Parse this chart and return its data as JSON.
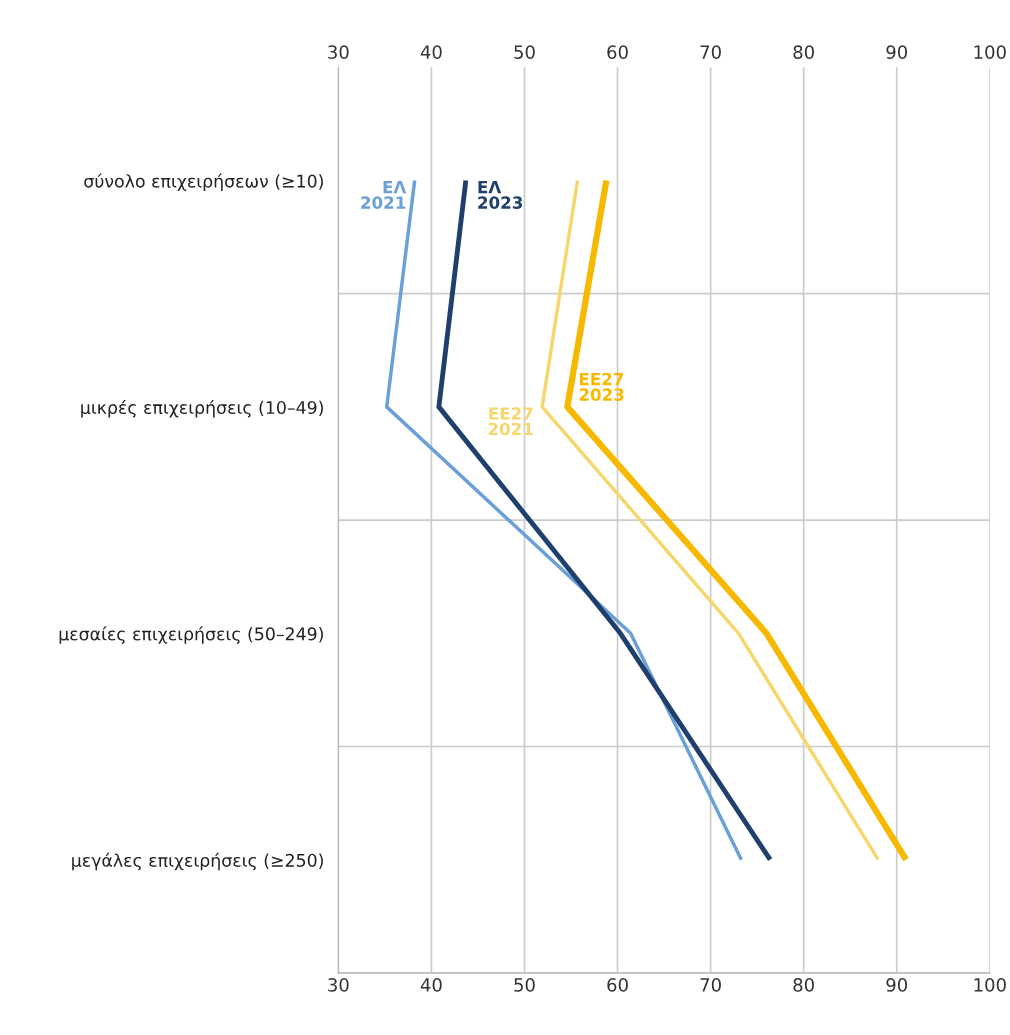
{
  "chart_data": {
    "type": "line",
    "orientation": "horizontal",
    "categories": [
      "σύνολο επιχειρήσεων (≥10)",
      "μικρές επιχειρήσεις (10–49)",
      "μεσαίες επιχειρήσεις (50–249)",
      "μεγάλες επιχειρήσεις (≥250)"
    ],
    "series": [
      {
        "name": "ΕΛ\n2021",
        "color": "#6a9fd8",
        "values": [
          38.2,
          35.2,
          61.4,
          73.3
        ]
      },
      {
        "name": "ΕΛ\n2023",
        "color": "#1f3f6e",
        "values": [
          43.7,
          40.8,
          60.3,
          76.4
        ]
      },
      {
        "name": "ΕΕ27\n2021",
        "color": "#f5d76e",
        "values": [
          55.7,
          51.9,
          73.0,
          88.0
        ]
      },
      {
        "name": "ΕΕ27\n2023",
        "color": "#f7b900",
        "values": [
          58.8,
          54.6,
          76.0,
          91.0
        ]
      }
    ],
    "xlim": [
      30,
      100
    ],
    "xticks": [
      30,
      40,
      50,
      60,
      70,
      80,
      90,
      100
    ],
    "x2lim": [
      30,
      100
    ],
    "x2ticks": [
      30,
      40,
      50,
      60,
      70,
      80,
      90,
      100
    ],
    "grid": true,
    "marker": "none",
    "line_style": "solid"
  }
}
